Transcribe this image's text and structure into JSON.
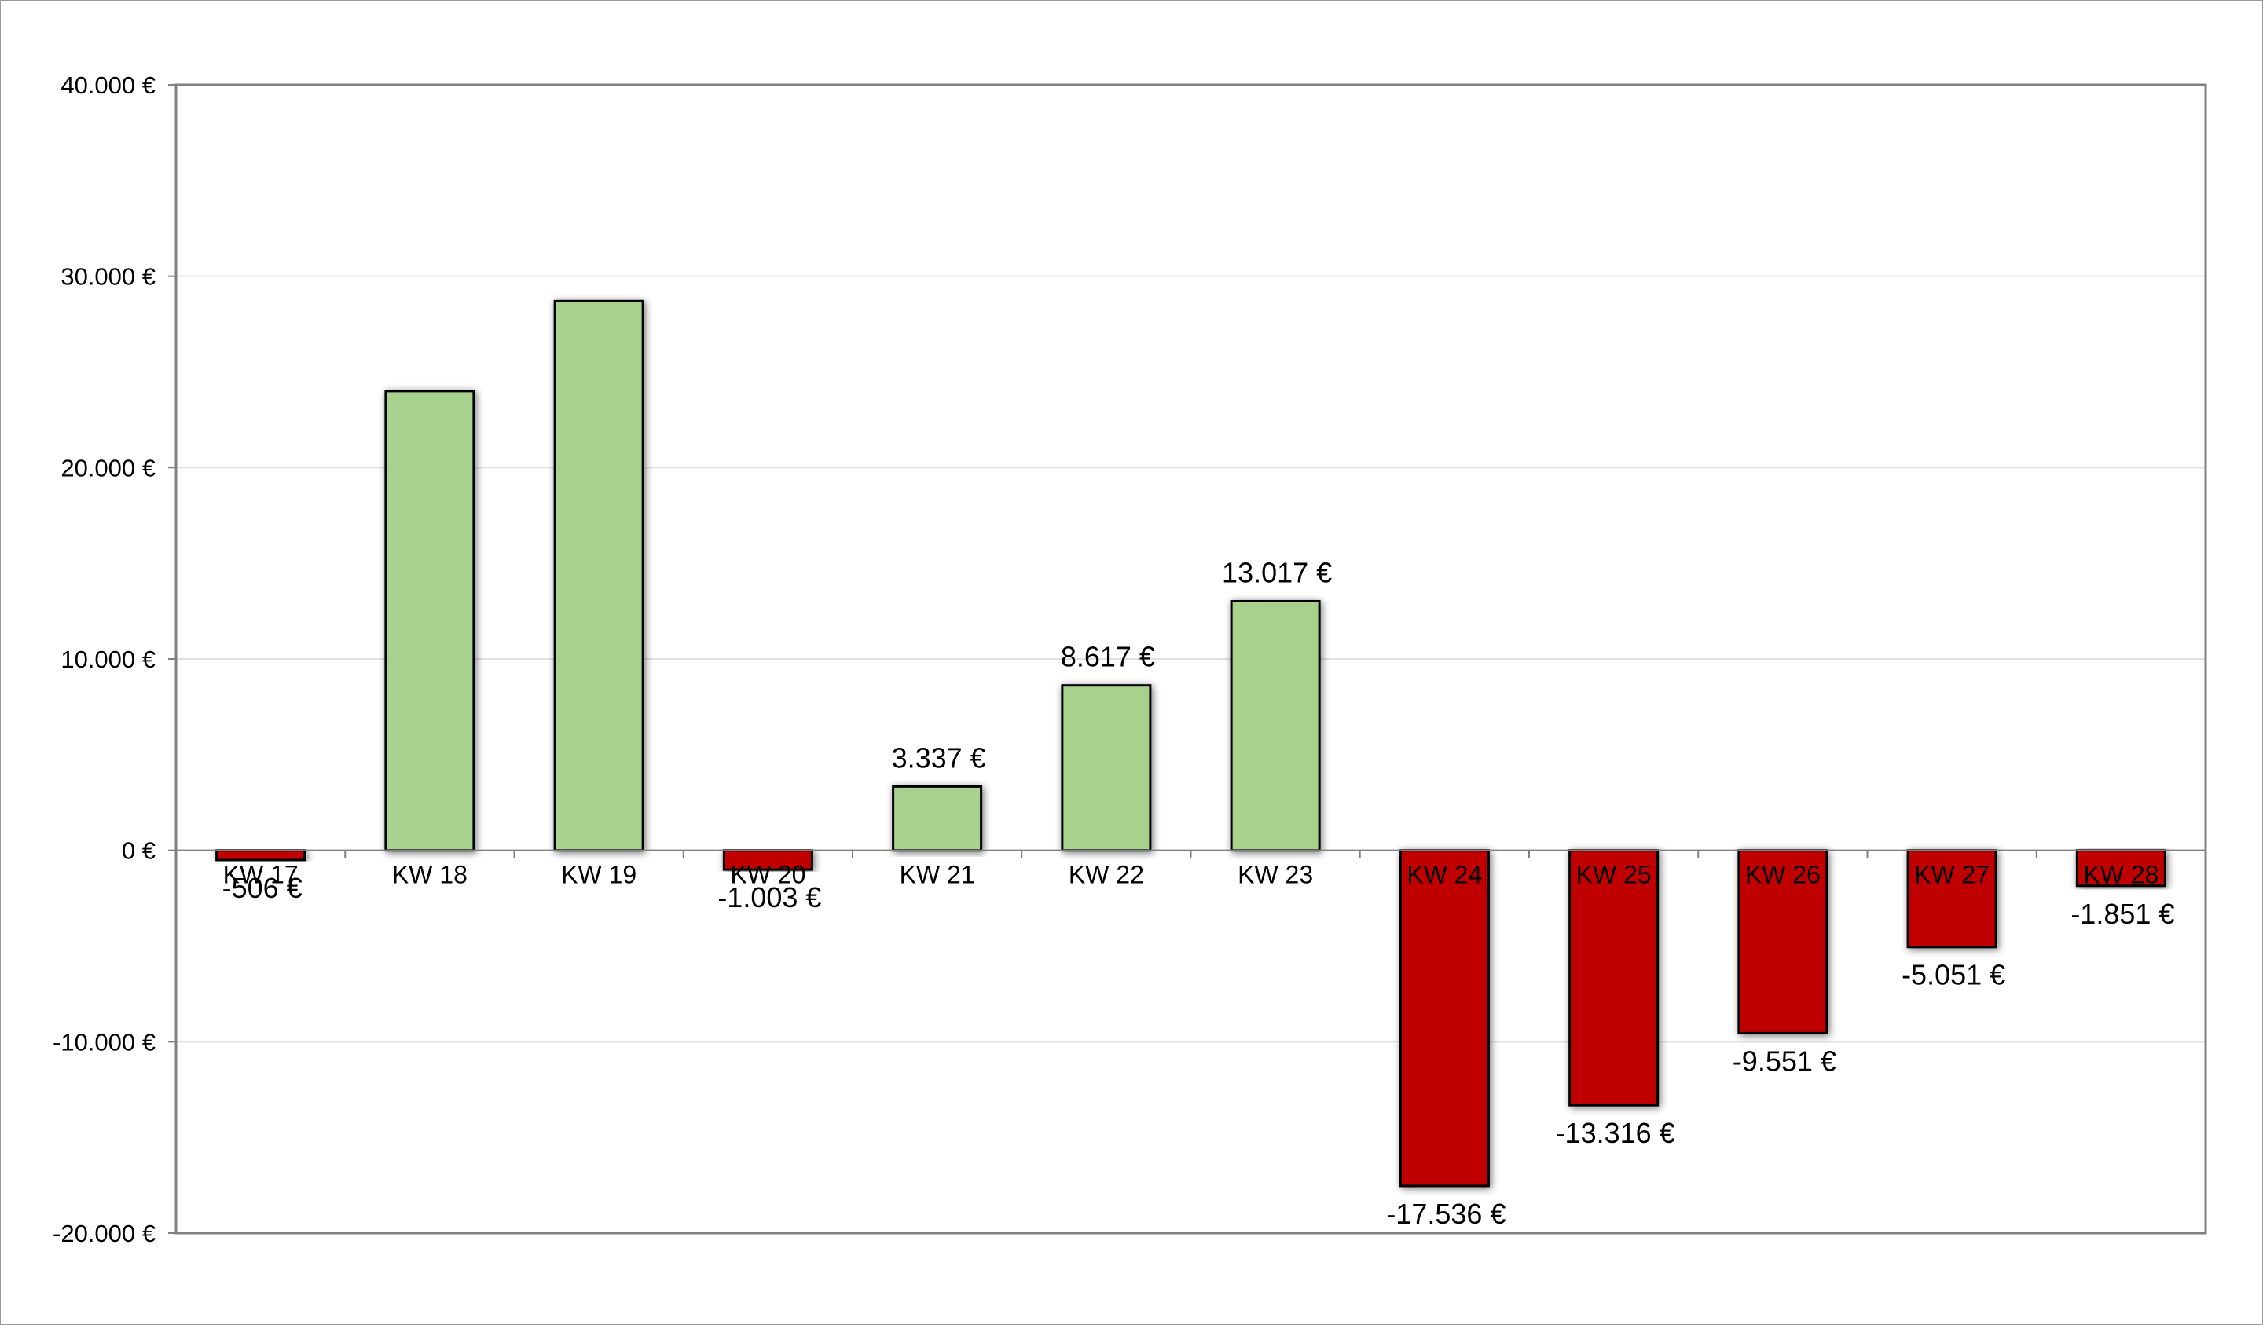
{
  "chart_data": {
    "type": "bar",
    "title": "",
    "xlabel": "",
    "ylabel": "",
    "ylim": [
      -20000,
      40000
    ],
    "yticks": [
      40000,
      30000,
      20000,
      10000,
      0,
      -10000,
      -20000
    ],
    "ytick_labels": [
      "40.000 €",
      "30.000 €",
      "20.000 €",
      "10.000 €",
      "0 €",
      "-10.000 €",
      "-20.000 €"
    ],
    "grid": true,
    "legend": "none",
    "categories": [
      "KW 17",
      "KW 18",
      "KW 19",
      "KW 20",
      "KW 21",
      "KW 22",
      "KW 23",
      "KW 24",
      "KW 25",
      "KW 26",
      "KW 27",
      "KW 28"
    ],
    "values": [
      -506,
      24000,
      28700,
      -1003,
      3337,
      8617,
      13017,
      -17536,
      -13316,
      -9551,
      -5051,
      -1851
    ],
    "data_labels": [
      "-506 €",
      "",
      "",
      "-1.003 €",
      "3.337 €",
      "8.617 €",
      "13.017 €",
      "-17.536 €",
      "-13.316 €",
      "-9.551 €",
      "-5.051 €",
      "-1.851 €"
    ],
    "colors": {
      "positive": "#a9d18e",
      "negative": "#c00000",
      "bar_border": "#000000",
      "axis": "#808080",
      "gridline": "#e0e0e0"
    }
  }
}
